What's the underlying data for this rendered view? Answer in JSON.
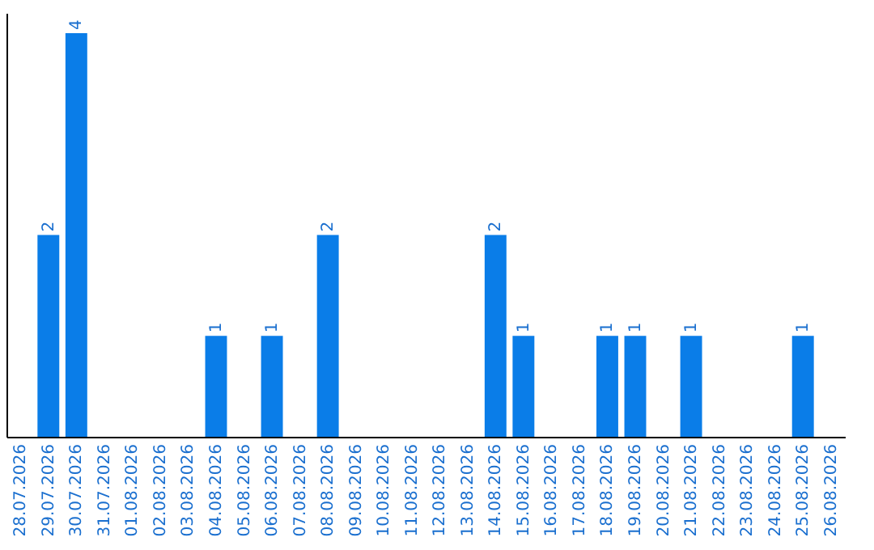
{
  "chart_data": {
    "type": "bar",
    "categories": [
      "28.07.2026",
      "29.07.2026",
      "30.07.2026",
      "31.07.2026",
      "01.08.2026",
      "02.08.2026",
      "03.08.2026",
      "04.08.2026",
      "05.08.2026",
      "06.08.2026",
      "07.08.2026",
      "08.08.2026",
      "09.08.2026",
      "10.08.2026",
      "11.08.2026",
      "12.08.2026",
      "13.08.2026",
      "14.08.2026",
      "15.08.2026",
      "16.08.2026",
      "17.08.2026",
      "18.08.2026",
      "19.08.2026",
      "20.08.2026",
      "21.08.2026",
      "22.08.2026",
      "23.08.2026",
      "24.08.2026",
      "25.08.2026",
      "26.08.2026"
    ],
    "values": [
      0,
      2,
      4,
      0,
      0,
      0,
      0,
      1,
      0,
      1,
      0,
      2,
      0,
      0,
      0,
      0,
      0,
      2,
      1,
      0,
      0,
      1,
      1,
      0,
      1,
      0,
      0,
      0,
      1,
      0
    ],
    "value_labels": [
      null,
      "2",
      "4",
      null,
      null,
      null,
      null,
      "1",
      null,
      "1",
      null,
      "2",
      null,
      null,
      null,
      null,
      null,
      "2",
      "1",
      null,
      null,
      "1",
      "1",
      null,
      "1",
      null,
      null,
      null,
      "1",
      null
    ],
    "color": "#0a7de8",
    "ylim": [
      0,
      4.2
    ],
    "tick_labels": "x"
  }
}
